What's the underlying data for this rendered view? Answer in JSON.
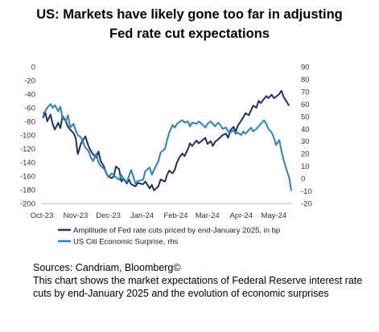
{
  "title_line1": "US: Markets have likely gone too far in adjusting",
  "title_line2": "Fed rate cut expectations",
  "chart_data": {
    "type": "line",
    "title": "US: Markets have likely gone too far in adjusting Fed rate cut expectations",
    "x_ticks": [
      "Oct-23",
      "Nov-23",
      "Dec-23",
      "Jan-24",
      "Feb-24",
      "Mar-24",
      "Apr-24",
      "May-24"
    ],
    "x_range": [
      "2023-10-01",
      "2024-05-17"
    ],
    "left_axis": {
      "ticks": [
        0,
        -20,
        -40,
        -60,
        -80,
        -100,
        -120,
        -140,
        -160,
        -180,
        -200
      ],
      "range": [
        -200,
        0
      ]
    },
    "right_axis": {
      "ticks": [
        90,
        80,
        70,
        60,
        50,
        40,
        30,
        20,
        10,
        0,
        -10,
        -20
      ],
      "range": [
        -20,
        90
      ],
      "label_suffix": "rhs"
    },
    "grid": false,
    "legend_position": "bottom",
    "series": [
      {
        "name": "Amplitude of Fed rate cuts priced by end-January 2025, in bp",
        "axis": "left",
        "color": "#1f2f6e",
        "points": [
          [
            "2023-10-02",
            -75
          ],
          [
            "2023-10-04",
            -66
          ],
          [
            "2023-10-06",
            -80
          ],
          [
            "2023-10-09",
            -70
          ],
          [
            "2023-10-11",
            -84
          ],
          [
            "2023-10-13",
            -92
          ],
          [
            "2023-10-16",
            -82
          ],
          [
            "2023-10-18",
            -90
          ],
          [
            "2023-10-20",
            -72
          ],
          [
            "2023-10-23",
            -80
          ],
          [
            "2023-10-25",
            -88
          ],
          [
            "2023-10-27",
            -92
          ],
          [
            "2023-10-30",
            -97
          ],
          [
            "2023-11-01",
            -104
          ],
          [
            "2023-11-03",
            -128
          ],
          [
            "2023-11-06",
            -112
          ],
          [
            "2023-11-08",
            -107
          ],
          [
            "2023-11-10",
            -102
          ],
          [
            "2023-11-13",
            -117
          ],
          [
            "2023-11-15",
            -123
          ],
          [
            "2023-11-17",
            -128
          ],
          [
            "2023-11-20",
            -133
          ],
          [
            "2023-11-22",
            -124
          ],
          [
            "2023-11-24",
            -138
          ],
          [
            "2023-11-27",
            -146
          ],
          [
            "2023-11-29",
            -156
          ],
          [
            "2023-12-01",
            -160
          ],
          [
            "2023-12-04",
            -163
          ],
          [
            "2023-12-06",
            -161
          ],
          [
            "2023-12-08",
            -146
          ],
          [
            "2023-12-11",
            -150
          ],
          [
            "2023-12-13",
            -168
          ],
          [
            "2023-12-15",
            -164
          ],
          [
            "2023-12-18",
            -171
          ],
          [
            "2023-12-20",
            -165
          ],
          [
            "2023-12-22",
            -172
          ],
          [
            "2023-12-26",
            -175
          ],
          [
            "2023-12-28",
            -170
          ],
          [
            "2024-01-02",
            -172
          ],
          [
            "2024-01-04",
            -168
          ],
          [
            "2024-01-08",
            -178
          ],
          [
            "2024-01-10",
            -173
          ],
          [
            "2024-01-12",
            -181
          ],
          [
            "2024-01-16",
            -175
          ],
          [
            "2024-01-18",
            -165
          ],
          [
            "2024-01-22",
            -168
          ],
          [
            "2024-01-24",
            -158
          ],
          [
            "2024-01-26",
            -152
          ],
          [
            "2024-01-29",
            -156
          ],
          [
            "2024-01-31",
            -151
          ],
          [
            "2024-02-02",
            -140
          ],
          [
            "2024-02-05",
            -131
          ],
          [
            "2024-02-07",
            -127
          ],
          [
            "2024-02-09",
            -131
          ],
          [
            "2024-02-12",
            -121
          ],
          [
            "2024-02-14",
            -112
          ],
          [
            "2024-02-16",
            -116
          ],
          [
            "2024-02-20",
            -108
          ],
          [
            "2024-02-22",
            -112
          ],
          [
            "2024-02-26",
            -107
          ],
          [
            "2024-02-28",
            -104
          ],
          [
            "2024-03-01",
            -113
          ],
          [
            "2024-03-04",
            -109
          ],
          [
            "2024-03-06",
            -116
          ],
          [
            "2024-03-08",
            -110
          ],
          [
            "2024-03-11",
            -106
          ],
          [
            "2024-03-13",
            -103
          ],
          [
            "2024-03-15",
            -100
          ],
          [
            "2024-03-18",
            -98
          ],
          [
            "2024-03-20",
            -104
          ],
          [
            "2024-03-22",
            -93
          ],
          [
            "2024-03-25",
            -88
          ],
          [
            "2024-03-27",
            -95
          ],
          [
            "2024-03-29",
            -86
          ],
          [
            "2024-04-01",
            -79
          ],
          [
            "2024-04-03",
            -74
          ],
          [
            "2024-04-05",
            -68
          ],
          [
            "2024-04-08",
            -71
          ],
          [
            "2024-04-10",
            -64
          ],
          [
            "2024-04-12",
            -57
          ],
          [
            "2024-04-15",
            -60
          ],
          [
            "2024-04-17",
            -50
          ],
          [
            "2024-04-19",
            -53
          ],
          [
            "2024-04-22",
            -47
          ],
          [
            "2024-04-24",
            -43
          ],
          [
            "2024-04-26",
            -46
          ],
          [
            "2024-04-29",
            -41
          ],
          [
            "2024-05-01",
            -46
          ],
          [
            "2024-05-03",
            -44
          ],
          [
            "2024-05-06",
            -40
          ],
          [
            "2024-05-08",
            -35
          ],
          [
            "2024-05-10",
            -44
          ],
          [
            "2024-05-13",
            -52
          ],
          [
            "2024-05-15",
            -57
          ]
        ]
      },
      {
        "name": "US Citi Economic Surprise, rhs",
        "axis": "right",
        "color": "#2a82c4",
        "points": [
          [
            "2023-10-02",
            52
          ],
          [
            "2023-10-04",
            54
          ],
          [
            "2023-10-06",
            57
          ],
          [
            "2023-10-09",
            60
          ],
          [
            "2023-10-11",
            57
          ],
          [
            "2023-10-13",
            59
          ],
          [
            "2023-10-16",
            54
          ],
          [
            "2023-10-18",
            58
          ],
          [
            "2023-10-20",
            49
          ],
          [
            "2023-10-23",
            46
          ],
          [
            "2023-10-25",
            51
          ],
          [
            "2023-10-27",
            41
          ],
          [
            "2023-10-30",
            44
          ],
          [
            "2023-11-01",
            39
          ],
          [
            "2023-11-03",
            35
          ],
          [
            "2023-11-06",
            33
          ],
          [
            "2023-11-08",
            29
          ],
          [
            "2023-11-10",
            25
          ],
          [
            "2023-11-13",
            22
          ],
          [
            "2023-11-15",
            17
          ],
          [
            "2023-11-17",
            14
          ],
          [
            "2023-11-20",
            20
          ],
          [
            "2023-11-22",
            13
          ],
          [
            "2023-11-24",
            10
          ],
          [
            "2023-11-27",
            8
          ],
          [
            "2023-11-29",
            5
          ],
          [
            "2023-12-01",
            1
          ],
          [
            "2023-12-04",
            4
          ],
          [
            "2023-12-06",
            3
          ],
          [
            "2023-12-08",
            1
          ],
          [
            "2023-12-11",
            -1
          ],
          [
            "2023-12-13",
            3
          ],
          [
            "2023-12-15",
            0
          ],
          [
            "2023-12-18",
            -3
          ],
          [
            "2023-12-20",
            2
          ],
          [
            "2023-12-22",
            7
          ],
          [
            "2023-12-26",
            -4
          ],
          [
            "2023-12-28",
            -2
          ],
          [
            "2024-01-02",
            -1
          ],
          [
            "2024-01-04",
            6
          ],
          [
            "2024-01-08",
            9
          ],
          [
            "2024-01-10",
            3
          ],
          [
            "2024-01-12",
            7
          ],
          [
            "2024-01-16",
            14
          ],
          [
            "2024-01-18",
            21
          ],
          [
            "2024-01-22",
            24
          ],
          [
            "2024-01-24",
            31
          ],
          [
            "2024-01-26",
            37
          ],
          [
            "2024-01-29",
            43
          ],
          [
            "2024-01-31",
            41
          ],
          [
            "2024-02-02",
            44
          ],
          [
            "2024-02-05",
            46
          ],
          [
            "2024-02-07",
            47
          ],
          [
            "2024-02-09",
            45
          ],
          [
            "2024-02-12",
            46
          ],
          [
            "2024-02-14",
            42
          ],
          [
            "2024-02-16",
            45
          ],
          [
            "2024-02-20",
            44
          ],
          [
            "2024-02-22",
            46
          ],
          [
            "2024-02-26",
            43
          ],
          [
            "2024-02-28",
            41
          ],
          [
            "2024-03-01",
            44
          ],
          [
            "2024-03-04",
            46
          ],
          [
            "2024-03-06",
            44
          ],
          [
            "2024-03-08",
            42
          ],
          [
            "2024-03-11",
            45
          ],
          [
            "2024-03-13",
            43
          ],
          [
            "2024-03-15",
            40
          ],
          [
            "2024-03-18",
            41
          ],
          [
            "2024-03-20",
            38
          ],
          [
            "2024-03-22",
            37
          ],
          [
            "2024-03-25",
            39
          ],
          [
            "2024-03-27",
            36
          ],
          [
            "2024-03-29",
            37
          ],
          [
            "2024-04-01",
            35
          ],
          [
            "2024-04-03",
            38
          ],
          [
            "2024-04-05",
            36
          ],
          [
            "2024-04-08",
            39
          ],
          [
            "2024-04-10",
            41
          ],
          [
            "2024-04-12",
            38
          ],
          [
            "2024-04-15",
            40
          ],
          [
            "2024-04-17",
            42
          ],
          [
            "2024-04-19",
            44
          ],
          [
            "2024-04-22",
            47
          ],
          [
            "2024-04-24",
            44
          ],
          [
            "2024-04-26",
            40
          ],
          [
            "2024-04-29",
            37
          ],
          [
            "2024-05-01",
            33
          ],
          [
            "2024-05-03",
            27
          ],
          [
            "2024-05-06",
            31
          ],
          [
            "2024-05-08",
            22
          ],
          [
            "2024-05-10",
            15
          ],
          [
            "2024-05-13",
            6
          ],
          [
            "2024-05-15",
            1
          ],
          [
            "2024-05-17",
            -10
          ]
        ]
      }
    ]
  },
  "footer": {
    "sources": "Sources: Candriam, Bloomberg©",
    "description": "This chart shows the market expectations of Federal Reserve interest rate cuts by end-January 2025 and the evolution of economic surprises"
  }
}
